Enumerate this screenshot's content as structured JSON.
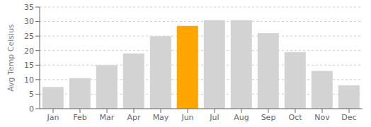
{
  "chart_data": {
    "type": "bar",
    "categories": [
      "Jan",
      "Feb",
      "Mar",
      "Apr",
      "May",
      "Jun",
      "Jul",
      "Aug",
      "Sep",
      "Oct",
      "Nov",
      "Dec"
    ],
    "values": [
      7.5,
      10.5,
      15.0,
      19.0,
      25.0,
      28.5,
      30.5,
      30.5,
      26.0,
      19.5,
      13.0,
      8.0
    ],
    "colors": [
      "#d3d3d3",
      "#d3d3d3",
      "#d3d3d3",
      "#d3d3d3",
      "#d3d3d3",
      "#FFA500",
      "#d3d3d3",
      "#d3d3d3",
      "#d3d3d3",
      "#d3d3d3",
      "#d3d3d3",
      "#d3d3d3"
    ],
    "ylabel": "Avg Temp Celsius",
    "ylim": [
      0,
      35
    ],
    "yticks": [
      0,
      5,
      10,
      15,
      20,
      25,
      30,
      35
    ],
    "grid": true
  }
}
